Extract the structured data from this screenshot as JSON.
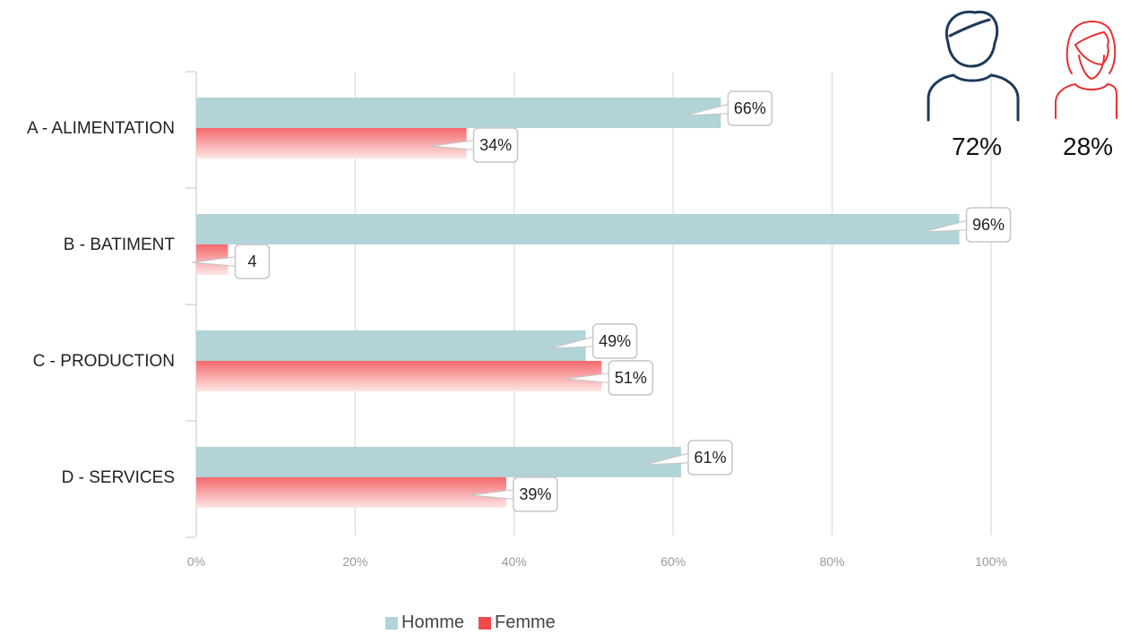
{
  "chart_data": {
    "type": "bar",
    "orientation": "horizontal",
    "categories": [
      "A - ALIMENTATION",
      "B - BATIMENT",
      "C - PRODUCTION",
      "D - SERVICES"
    ],
    "series": [
      {
        "name": "Homme",
        "values": [
          66,
          96,
          49,
          61
        ],
        "labels": [
          "66%",
          "96%",
          "49%",
          "61%"
        ]
      },
      {
        "name": "Femme",
        "values": [
          34,
          4,
          51,
          39
        ],
        "labels": [
          "34%",
          "4",
          "51%",
          "39%"
        ]
      }
    ],
    "xlim": [
      0,
      100
    ],
    "xticks": [
      "0%",
      "20%",
      "40%",
      "60%",
      "80%",
      "100%"
    ],
    "grid": true,
    "legend_position": "bottom"
  },
  "colors": {
    "homme": "#b2d3d8",
    "femme": "#f04a4a",
    "homme_icon": "#1f3a5a",
    "femme_icon": "#e83030"
  },
  "legend": {
    "homme": "Homme",
    "femme": "Femme"
  },
  "totals": {
    "homme": "72%",
    "femme": "28%"
  },
  "icons": {
    "homme": "man-icon",
    "femme": "woman-icon"
  }
}
